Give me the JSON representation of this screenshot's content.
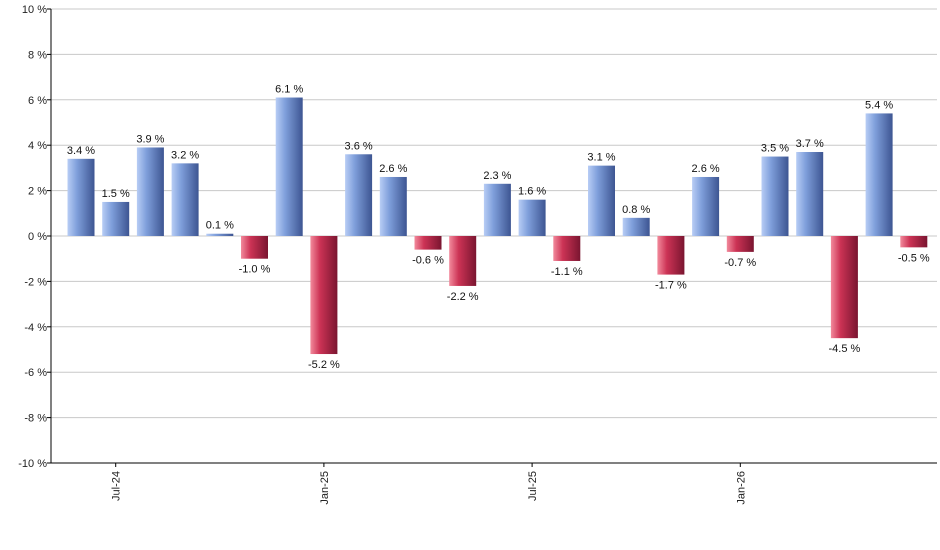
{
  "chart_data": {
    "type": "bar",
    "title": "",
    "xlabel": "",
    "ylabel": "",
    "ylim": [
      -10,
      10
    ],
    "yticks": [
      10,
      8,
      6,
      4,
      2,
      0,
      -2,
      -4,
      -6,
      -8,
      -10
    ],
    "ytick_labels": [
      "10 %",
      "8 %",
      "6 %",
      "4 %",
      "2 %",
      "0 %",
      "-2 %",
      "-4 %",
      "-6 %",
      "-8 %",
      "-10 %"
    ],
    "categories": [
      "2024-06",
      "2024-07",
      "2024-08",
      "2024-09",
      "2024-10",
      "2024-11",
      "2024-12",
      "2025-01",
      "2025-02",
      "2025-03",
      "2025-04",
      "2025-05",
      "2025-06",
      "2025-07",
      "2025-08",
      "2025-09",
      "2025-10",
      "2025-11",
      "2025-12",
      "2026-01",
      "2026-02",
      "2026-03",
      "2026-04",
      "2026-05",
      "2026-06"
    ],
    "values": [
      3.4,
      1.5,
      3.9,
      3.2,
      0.1,
      -1.0,
      6.1,
      -5.2,
      3.6,
      2.6,
      -0.6,
      -2.2,
      2.3,
      1.6,
      -1.1,
      3.1,
      0.8,
      -1.7,
      2.6,
      -0.7,
      3.5,
      3.7,
      -4.5,
      5.4,
      -0.5
    ],
    "value_labels": [
      "3.4 %",
      "1.5 %",
      "3.9 %",
      "3.2 %",
      "0.1 %",
      "-1.0 %",
      "6.1 %",
      "-5.2 %",
      "3.6 %",
      "2.6 %",
      "-0.6 %",
      "-2.2 %",
      "2.3 %",
      "1.6 %",
      "-1.1 %",
      "3.1 %",
      "0.8 %",
      "-1.7 %",
      "2.6 %",
      "-0.7 %",
      "3.5 %",
      "3.7 %",
      "-4.5 %",
      "5.4 %",
      "-0.5 %"
    ],
    "x_tick_labels": [
      {
        "label": "Jul-24",
        "index": 1
      },
      {
        "label": "Jan-25",
        "index": 7
      },
      {
        "label": "Jul-25",
        "index": 13
      },
      {
        "label": "Jan-26",
        "index": 19
      }
    ],
    "grid": true,
    "colors": {
      "positive_light": "#b8cdf5",
      "positive_mid": "#7f9fdb",
      "positive_dark": "#3d5592",
      "negative_light": "#f28a9c",
      "negative_mid": "#cc3355",
      "negative_dark": "#7a1530",
      "grid": "#c8c8c8",
      "axis": "#000000"
    }
  }
}
